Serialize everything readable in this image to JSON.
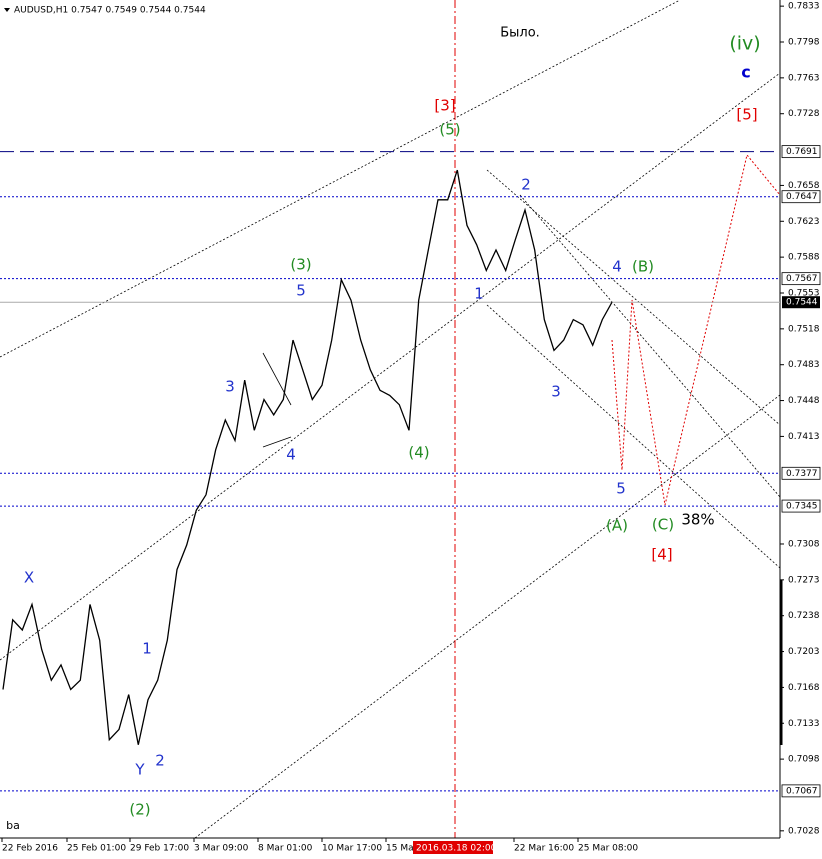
{
  "chart_data": {
    "type": "line",
    "title": "AUDUSD,H1  0.7547 0.7549 0.7544 0.7544",
    "color": "#000000",
    "x_labels": [
      "22 Feb 2016",
      "25 Feb 01:00",
      "29 Feb 17:00",
      "3 Mar 09:00",
      "8 Mar 01:00",
      "10 Mar 17:00",
      "15 Ma",
      "22 Mar 16:00",
      "25 Mar 08:00"
    ],
    "cursor_label": "2016.03.18 02:00",
    "values": [
      0.7166,
      0.7234,
      0.7224,
      0.7249,
      0.7205,
      0.7175,
      0.719,
      0.7166,
      0.7175,
      0.7249,
      0.7214,
      0.7117,
      0.7127,
      0.7161,
      0.7112,
      0.7156,
      0.7175,
      0.7214,
      0.7283,
      0.7307,
      0.7341,
      0.7356,
      0.74,
      0.7429,
      0.7409,
      0.7468,
      0.7419,
      0.7449,
      0.7434,
      0.7449,
      0.7507,
      0.7478,
      0.7449,
      0.7463,
      0.7507,
      0.7566,
      0.7546,
      0.7507,
      0.7478,
      0.7458,
      0.7453,
      0.7444,
      0.7419,
      0.7546,
      0.7595,
      0.7644,
      0.7644,
      0.7673,
      0.7619,
      0.76,
      0.7575,
      0.7595,
      0.7575,
      0.7605,
      0.7634,
      0.7595,
      0.7527,
      0.7497,
      0.7507,
      0.7527,
      0.7522,
      0.7502,
      0.7527,
      0.7544
    ],
    "ylim": [
      0.7021,
      0.7839
    ],
    "yticks": [
      0.7833,
      0.7798,
      0.7763,
      0.7728,
      0.7658,
      0.7623,
      0.7588,
      0.7553,
      0.7518,
      0.7483,
      0.7448,
      0.7413,
      0.7308,
      0.7273,
      0.7238,
      0.7203,
      0.7168,
      0.7133,
      0.7098,
      0.7028
    ],
    "levels": [
      {
        "value": 0.7691,
        "style": "dashed"
      },
      {
        "value": 0.7647,
        "style": "dotted"
      },
      {
        "value": 0.7567,
        "style": "dotted"
      },
      {
        "value": 0.7377,
        "style": "dotted"
      },
      {
        "value": 0.7345,
        "style": "dotted"
      },
      {
        "value": 0.7067,
        "style": "dotted"
      }
    ],
    "current_price": 0.7544,
    "annotations": [
      {
        "text": "Было.",
        "color": "#000000"
      },
      {
        "text": "(iv)",
        "color": "#228b22"
      },
      {
        "text": "c",
        "color": "#0000cd"
      },
      {
        "text": "[5]",
        "color": "#e00000"
      },
      {
        "text": "[3]",
        "color": "#e00000"
      },
      {
        "text": "(5)",
        "color": "#228b22"
      },
      {
        "text": "2",
        "color": "#2233cc"
      },
      {
        "text": "(3)",
        "color": "#228b22"
      },
      {
        "text": "5",
        "color": "#2233cc"
      },
      {
        "text": "4",
        "color": "#2233cc"
      },
      {
        "text": "(B)",
        "color": "#228b22"
      },
      {
        "text": "1",
        "color": "#2233cc"
      },
      {
        "text": "3",
        "color": "#2233cc"
      },
      {
        "text": "4",
        "color": "#2233cc"
      },
      {
        "text": "3",
        "color": "#2233cc"
      },
      {
        "text": "(4)",
        "color": "#228b22"
      },
      {
        "text": "5",
        "color": "#2233cc"
      },
      {
        "text": "(A)",
        "color": "#228b22"
      },
      {
        "text": "(C)",
        "color": "#228b22"
      },
      {
        "text": "38%",
        "color": "#000000"
      },
      {
        "text": "[4]",
        "color": "#e00000"
      },
      {
        "text": "X",
        "color": "#2233cc"
      },
      {
        "text": "1",
        "color": "#2233cc"
      },
      {
        "text": "2",
        "color": "#2233cc"
      },
      {
        "text": "Y",
        "color": "#2233cc"
      },
      {
        "text": "(2)",
        "color": "#228b22"
      },
      {
        "text": "ba",
        "color": "#000000"
      }
    ]
  }
}
